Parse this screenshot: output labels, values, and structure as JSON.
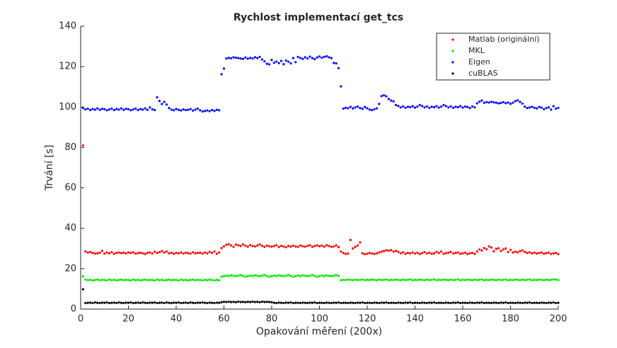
{
  "chart_data": {
    "type": "scatter",
    "title": "Rychlost implementací get_tcs",
    "xlabel": "Opakování měření (200x)",
    "ylabel": "Trvání [s]",
    "xlim": [
      0,
      200
    ],
    "xticks": [
      0,
      20,
      40,
      60,
      80,
      100,
      120,
      140,
      160,
      180,
      200
    ],
    "ylim": [
      0,
      140
    ],
    "yticks": [
      0,
      20,
      40,
      60,
      80,
      100,
      120,
      140
    ],
    "grid": false,
    "legend": "upper right",
    "x": [
      1,
      2,
      3,
      4,
      5,
      6,
      7,
      8,
      9,
      10,
      11,
      12,
      13,
      14,
      15,
      16,
      17,
      18,
      19,
      20,
      21,
      22,
      23,
      24,
      25,
      26,
      27,
      28,
      29,
      30,
      31,
      32,
      33,
      34,
      35,
      36,
      37,
      38,
      39,
      40,
      41,
      42,
      43,
      44,
      45,
      46,
      47,
      48,
      49,
      50,
      51,
      52,
      53,
      54,
      55,
      56,
      57,
      58,
      59,
      60,
      61,
      62,
      63,
      64,
      65,
      66,
      67,
      68,
      69,
      70,
      71,
      72,
      73,
      74,
      75,
      76,
      77,
      78,
      79,
      80,
      81,
      82,
      83,
      84,
      85,
      86,
      87,
      88,
      89,
      90,
      91,
      92,
      93,
      94,
      95,
      96,
      97,
      98,
      99,
      100,
      101,
      102,
      103,
      104,
      105,
      106,
      107,
      108,
      109,
      110,
      111,
      112,
      113,
      114,
      115,
      116,
      117,
      118,
      119,
      120,
      121,
      122,
      123,
      124,
      125,
      126,
      127,
      128,
      129,
      130,
      131,
      132,
      133,
      134,
      135,
      136,
      137,
      138,
      139,
      140,
      141,
      142,
      143,
      144,
      145,
      146,
      147,
      148,
      149,
      150,
      151,
      152,
      153,
      154,
      155,
      156,
      157,
      158,
      159,
      160,
      161,
      162,
      163,
      164,
      165,
      166,
      167,
      168,
      169,
      170,
      171,
      172,
      173,
      174,
      175,
      176,
      177,
      178,
      179,
      180,
      181,
      182,
      183,
      184,
      185,
      186,
      187,
      188,
      189,
      190,
      191,
      192,
      193,
      194,
      195,
      196,
      197,
      198,
      199,
      200
    ],
    "series": [
      {
        "name": "Matlab (originální)",
        "color": "#ff0000",
        "values": [
          81,
          28.5,
          28,
          28.2,
          27.8,
          27.5,
          27.6,
          27.9,
          28.8,
          27.5,
          28,
          27.6,
          28.2,
          27.4,
          27.8,
          28,
          27.7,
          27.9,
          27.6,
          28,
          27.8,
          28.1,
          27.5,
          27.7,
          27.9,
          27.6,
          27.3,
          27.8,
          28,
          27.5,
          28.4,
          27.8,
          28.2,
          28.7,
          28,
          28.5,
          27.6,
          27.9,
          27.4,
          27.8,
          27.6,
          28,
          27.5,
          27.9,
          27.7,
          27.5,
          28.1,
          27.6,
          27.8,
          27.9,
          27.5,
          28,
          27.6,
          28.3,
          27.8,
          28.5,
          27.4,
          28,
          30.2,
          31,
          31.8,
          32.1,
          31.5,
          30.8,
          31.9,
          31.6,
          31.2,
          32,
          31.4,
          30.9,
          31.7,
          31.2,
          31,
          31.5,
          32,
          31.3,
          30.8,
          31.4,
          31.1,
          30.9,
          31.2,
          31.6,
          30.7,
          31.3,
          31,
          30.6,
          31.2,
          30.9,
          31.4,
          31,
          30.8,
          31.5,
          31.1,
          30.9,
          31.3,
          31.6,
          30.8,
          31.2,
          31.5,
          31.1,
          31.4,
          30.9,
          31.6,
          31.2,
          30.8,
          31,
          31.5,
          30.7,
          28.5,
          27.8,
          27.3,
          27.5,
          34.2,
          30,
          30.8,
          31.5,
          33,
          27.6,
          27.2,
          27.4,
          27.8,
          27.5,
          27.3,
          27.6,
          28,
          28.4,
          28.7,
          29.1,
          28.9,
          29.2,
          28.5,
          28.8,
          28.3,
          27.6,
          28.1,
          27.4,
          27.8,
          27.6,
          28,
          27.5,
          27.9,
          27.3,
          27.7,
          28.2,
          27.5,
          27.9,
          27.4,
          27.6,
          28.3,
          27.8,
          28.5,
          27.4,
          27.7,
          27.9,
          28.3,
          27.5,
          27.8,
          28,
          27.4,
          27.6,
          27.9,
          27.2,
          27.6,
          27.8,
          27.3,
          28.5,
          29.5,
          29,
          30.2,
          29.6,
          31,
          30.5,
          28.6,
          29.8,
          30.1,
          28.8,
          29.5,
          30,
          28.2,
          29.3,
          28,
          28.4,
          28.1,
          28.7,
          29,
          28.3,
          27.8,
          28.1,
          27.6,
          27.9,
          27.5,
          27.8,
          28,
          27.4,
          27.7,
          27.9,
          27.3,
          27.6,
          27.8,
          27.2
        ]
      },
      {
        "name": "MKL",
        "color": "#00e600",
        "values": [
          16.2,
          14.6,
          14.3,
          14.5,
          14.2,
          14.4,
          14.6,
          14.3,
          14.5,
          14.4,
          14.2,
          14.6,
          14.3,
          14.5,
          14.2,
          14.4,
          14.6,
          14.3,
          14.5,
          14.4,
          14.2,
          14.6,
          14.3,
          14.5,
          14.2,
          14.4,
          14.6,
          14.3,
          14.5,
          14.4,
          14.2,
          14.6,
          14.3,
          14.5,
          14.2,
          14.4,
          14.6,
          14.3,
          14.5,
          14.4,
          14.2,
          14.6,
          14.3,
          14.5,
          14.2,
          14.4,
          14.6,
          14.3,
          14.5,
          14.4,
          14.2,
          14.5,
          14.3,
          14.6,
          14.4,
          14.2,
          14.5,
          14.3,
          16,
          16.3,
          16.6,
          16.4,
          16.7,
          16.5,
          16.3,
          16.6,
          16.8,
          16.4,
          16,
          16.3,
          16.6,
          16.4,
          16.7,
          16.5,
          16.3,
          16.6,
          16.8,
          16.4,
          16,
          16.3,
          16.6,
          16.4,
          16.7,
          16.5,
          16.3,
          16.6,
          16.8,
          16.4,
          16,
          16.3,
          16.6,
          16.4,
          16.7,
          16.5,
          16.3,
          16.6,
          16.8,
          16.4,
          16,
          16.3,
          16.6,
          16.4,
          16.7,
          16.5,
          16.3,
          16.6,
          16.8,
          16.4,
          14.3,
          14.5,
          14.4,
          14.6,
          14.5,
          14.3,
          14.6,
          14.4,
          14.5,
          14.7,
          14.3,
          14.5,
          14.4,
          14.6,
          14.5,
          14.3,
          14.6,
          14.4,
          14.5,
          14.7,
          14.3,
          14.5,
          14.4,
          14.6,
          14.5,
          14.3,
          14.6,
          14.4,
          14.5,
          14.7,
          14.3,
          14.5,
          14.4,
          14.6,
          14.5,
          14.3,
          14.6,
          14.4,
          14.5,
          14.7,
          14.3,
          14.5,
          14.4,
          14.6,
          14.5,
          14.3,
          14.6,
          14.4,
          14.5,
          14.7,
          14.3,
          14.5,
          14.4,
          14.6,
          14.5,
          14.3,
          14.6,
          14.4,
          14.5,
          14.7,
          14.3,
          14.5,
          14.4,
          14.6,
          14.5,
          14.3,
          14.6,
          14.4,
          14.5,
          14.7,
          14.3,
          14.5,
          14.4,
          14.6,
          14.5,
          14.3,
          14.6,
          14.4,
          14.5,
          14.7,
          14.3,
          14.5,
          14.4,
          14.6,
          14.5,
          14.3,
          14.6,
          14.4,
          14.5,
          14.7,
          14.6,
          14.4
        ]
      },
      {
        "name": "Eigen",
        "color": "#0000ff",
        "values": [
          99.5,
          98.8,
          99.2,
          98.5,
          99,
          98.7,
          99.3,
          98.6,
          99.1,
          98.9,
          98.4,
          98.8,
          99.2,
          98.5,
          99,
          98.7,
          99.3,
          98.6,
          99.1,
          98.9,
          98.4,
          98.8,
          99.2,
          98.5,
          99,
          98.7,
          99.3,
          98.6,
          99.8,
          98.9,
          98.5,
          104.8,
          103,
          101.5,
          102.5,
          101.2,
          99.5,
          98.7,
          98.4,
          99,
          98.6,
          98.3,
          98.8,
          98.5,
          98.6,
          99,
          98.2,
          98.7,
          99.2,
          98.4,
          97.8,
          98,
          98.3,
          97.9,
          98.5,
          98.1,
          98.6,
          98.4,
          116.2,
          119,
          124,
          124.3,
          124.1,
          124.6,
          124.4,
          124.2,
          124,
          123.8,
          124.5,
          123.9,
          124.3,
          124,
          124.6,
          124.2,
          124.8,
          123.5,
          122.6,
          121.4,
          121.1,
          123.3,
          121.9,
          122.5,
          121.7,
          122.8,
          121.2,
          123,
          122.4,
          121.6,
          124.2,
          122.2,
          124.8,
          124.3,
          123.8,
          124.6,
          124,
          124.9,
          124.2,
          123.7,
          124.5,
          125,
          124.4,
          124.8,
          125.1,
          124.6,
          124.2,
          121.8,
          121.6,
          119.2,
          110.2,
          99.2,
          99.6,
          99.4,
          100.1,
          99.3,
          99.8,
          100.2,
          99.5,
          99.1,
          100,
          99.4,
          98.7,
          98.5,
          98.9,
          99.3,
          101.5,
          105.4,
          105.8,
          105.3,
          104,
          103.2,
          102.8,
          101,
          100.5,
          99.8,
          100.3,
          99.6,
          100.1,
          99.9,
          100.4,
          99.7,
          100.2,
          101,
          100.5,
          99.8,
          100.3,
          99.6,
          100.1,
          99.9,
          100.4,
          99.7,
          100.2,
          101,
          100.5,
          99.8,
          100.3,
          99.6,
          100.1,
          99.9,
          100.4,
          99.7,
          100.2,
          100,
          99.5,
          100.3,
          99.8,
          101.8,
          102.6,
          103.2,
          102.1,
          102.4,
          102.2,
          102.6,
          102.3,
          102.1,
          101.8,
          102,
          102.4,
          101.9,
          102.2,
          101.6,
          102.1,
          102.9,
          103.3,
          102.5,
          101.7,
          100.2,
          99.5,
          99.8,
          100.1,
          99.6,
          99.3,
          100,
          99.7,
          98.9,
          99.5,
          99.8,
          98.7,
          100.4,
          99.2,
          99.6
        ]
      },
      {
        "name": "cuBLAS",
        "color": "#000000",
        "values": [
          9.8,
          3,
          3.1,
          3.2,
          3,
          3.3,
          3.1,
          3,
          3.2,
          3.1,
          3.3,
          3,
          3.1,
          3.2,
          3,
          3.3,
          3.1,
          3,
          3.2,
          3.1,
          3.3,
          3,
          3.1,
          3.2,
          3,
          3.3,
          3.1,
          3,
          3.2,
          3.1,
          3.3,
          3,
          3.1,
          3.2,
          3,
          3.3,
          3.1,
          3,
          3.2,
          3.1,
          3.3,
          3,
          3.1,
          3.2,
          3,
          3.3,
          3.1,
          3,
          3.2,
          3.1,
          3.3,
          3.1,
          3,
          3.2,
          3.1,
          3,
          3.2,
          3.1,
          3.4,
          3.6,
          3.5,
          3.7,
          3.5,
          3.6,
          3.4,
          3.7,
          3.5,
          3.6,
          3.4,
          3.6,
          3.5,
          3.7,
          3.5,
          3.6,
          3.4,
          3.7,
          3.5,
          3.6,
          3.5,
          3.4,
          3.1,
          3,
          3.2,
          3.1,
          3,
          3.2,
          3.1,
          3.3,
          3,
          3.1,
          3.1,
          3,
          3.2,
          3.1,
          3,
          3.2,
          3.1,
          3.3,
          3,
          3.1,
          3.1,
          3,
          3.2,
          3.1,
          3,
          3.2,
          3.1,
          3.3,
          3,
          3.1,
          3.1,
          3,
          3.2,
          3.1,
          3,
          3.2,
          3.1,
          3.3,
          3,
          3.1,
          3.1,
          3,
          3.2,
          3.1,
          3,
          3.2,
          3.1,
          3.3,
          3,
          3.1,
          3.1,
          3,
          3.2,
          3.1,
          3,
          3.2,
          3.1,
          3.3,
          3,
          3.1,
          3.1,
          3,
          3.2,
          3.1,
          3,
          3.2,
          3.1,
          3.3,
          3,
          3.1,
          3.1,
          3,
          3.2,
          3.1,
          3,
          3.2,
          3.1,
          3.3,
          3,
          3.1,
          3.1,
          3,
          3.2,
          3.1,
          3,
          3.2,
          3.1,
          3.3,
          3,
          3.1,
          3.1,
          3,
          3.2,
          3.1,
          3,
          3.2,
          3.1,
          3.3,
          3,
          3.1,
          3.1,
          3,
          3.2,
          3.1,
          3,
          3.2,
          3.1,
          3.3,
          3,
          3.1,
          3.1,
          3,
          3.2,
          3.1,
          3,
          3.2,
          3.1,
          3.3,
          3,
          3.1
        ]
      }
    ]
  }
}
